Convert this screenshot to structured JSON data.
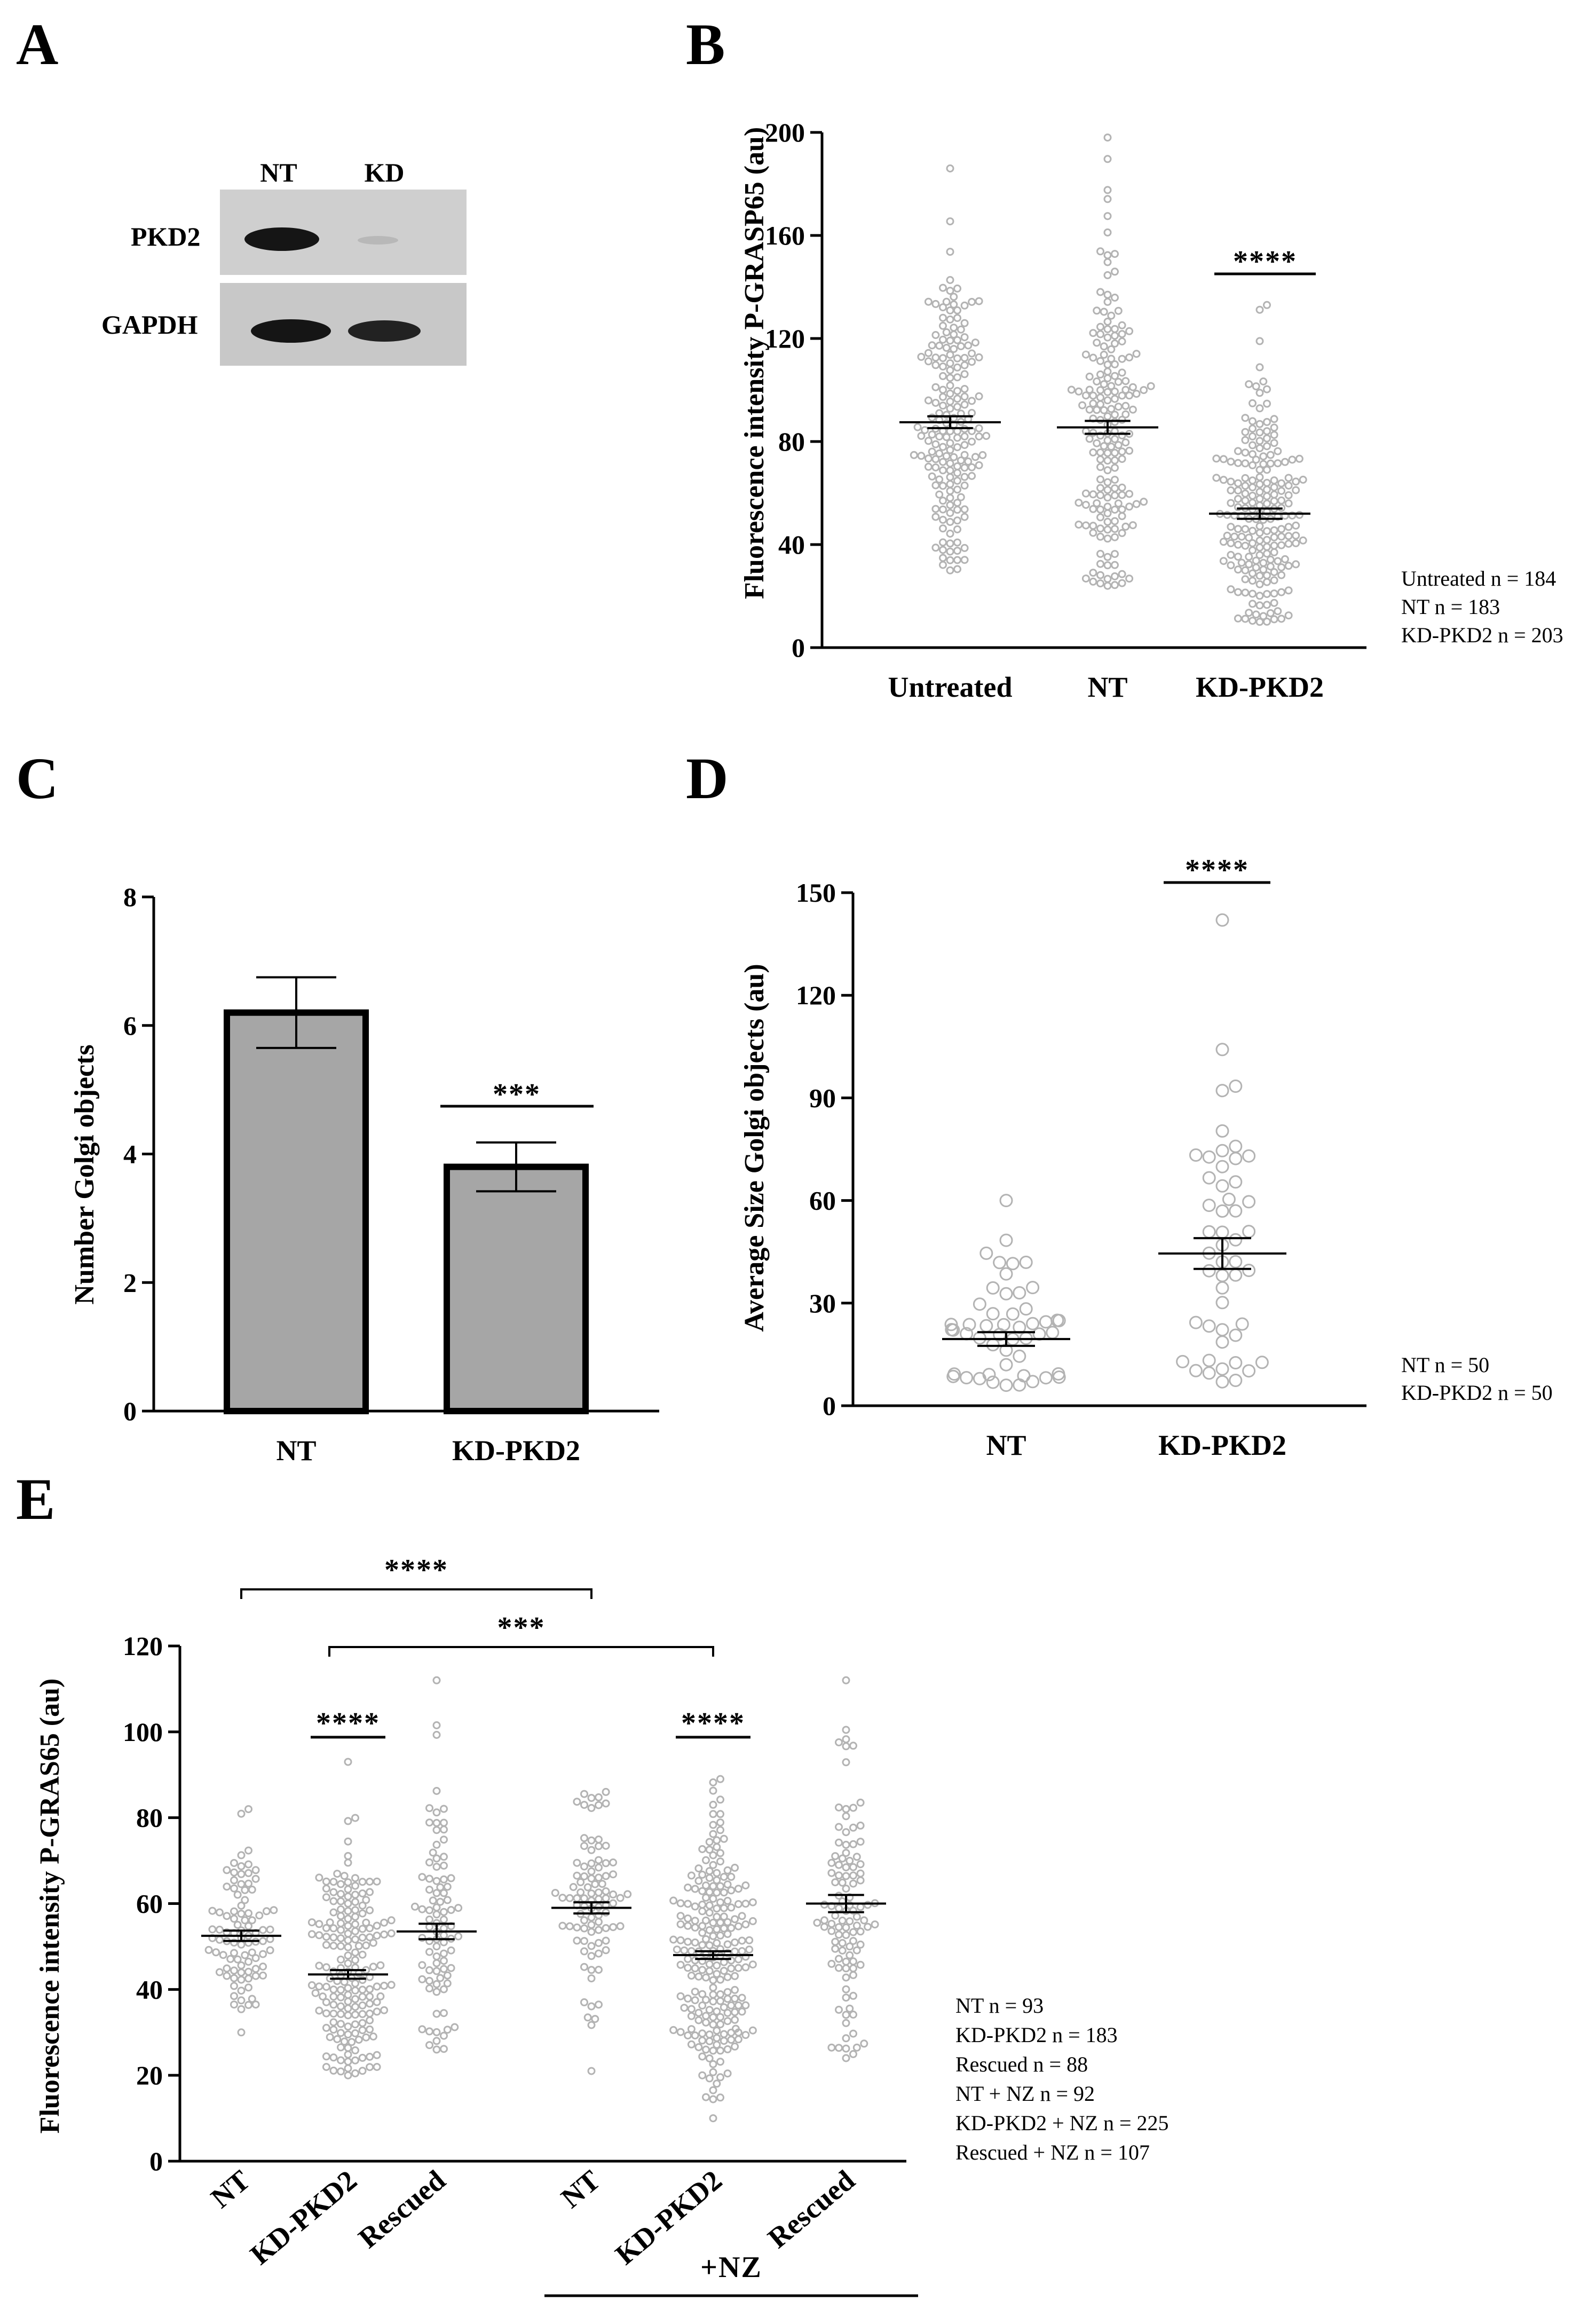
{
  "colors": {
    "dot": "#b3b3b3",
    "bar_fill": "#a6a6a6",
    "axis": "#000000",
    "blot_bg": "#c9c9c9",
    "band": "#1a1a1a"
  },
  "chart_data": [
    {
      "panel": "A",
      "type": "western-blot",
      "lanes": [
        "NT",
        "KD"
      ],
      "rows": [
        {
          "label": "PKD2",
          "band_intensity": [
            1.0,
            0.1
          ]
        },
        {
          "label": "GAPDH",
          "band_intensity": [
            1.0,
            0.85
          ]
        }
      ]
    },
    {
      "panel": "B",
      "type": "scatter",
      "ylabel": "Fluorescence intensity P-GRASP65 (au)",
      "ylim": [
        0,
        200
      ],
      "yticks": [
        0,
        40,
        80,
        120,
        160,
        200
      ],
      "categories": [
        "Untreated",
        "NT",
        "KD-PKD2"
      ],
      "groups": [
        {
          "name": "Untreated",
          "mean": 87.5,
          "sem": 2.3,
          "min": 30,
          "max": 186,
          "n": 184
        },
        {
          "name": "NT",
          "mean": 85.5,
          "sem": 2.5,
          "min": 24,
          "max": 198,
          "n": 183
        },
        {
          "name": "KD-PKD2",
          "mean": 52.0,
          "sem": 2.0,
          "min": 10,
          "max": 133,
          "n": 203
        }
      ],
      "significance": [
        {
          "over": "KD-PKD2",
          "label": "****",
          "y": 145
        }
      ],
      "legend": [
        "Untreated n = 184",
        "NT n = 183",
        "KD-PKD2 n = 203"
      ]
    },
    {
      "panel": "C",
      "type": "bar",
      "ylabel": "Number Golgi objects",
      "ylim": [
        0,
        8
      ],
      "yticks": [
        0,
        2,
        4,
        6,
        8
      ],
      "categories": [
        "NT",
        "KD-PKD2"
      ],
      "values": [
        6.2,
        3.8
      ],
      "errors": [
        0.55,
        0.38
      ],
      "significance": [
        {
          "over": "KD-PKD2",
          "label": "***",
          "y": 4.75
        }
      ]
    },
    {
      "panel": "D",
      "type": "scatter",
      "ylabel": "Average Size Golgi objects (au)",
      "ylim": [
        0,
        150
      ],
      "yticks": [
        0,
        30,
        60,
        90,
        120,
        150
      ],
      "categories": [
        "NT",
        "KD-PKD2"
      ],
      "groups": [
        {
          "name": "NT",
          "mean": 19.5,
          "sem": 2.0,
          "min": 6,
          "max": 60,
          "n": 50
        },
        {
          "name": "KD-PKD2",
          "mean": 44.5,
          "sem": 4.5,
          "min": 7,
          "max": 142,
          "n": 50
        }
      ],
      "significance": [
        {
          "over": "KD-PKD2",
          "label": "****",
          "y": 152
        }
      ],
      "legend": [
        "NT n = 50",
        "KD-PKD2 n = 50"
      ]
    },
    {
      "panel": "E",
      "type": "scatter",
      "ylabel": "Fluorescence intensity P-GRAS65 (au)",
      "ylim": [
        0,
        120
      ],
      "yticks": [
        0,
        20,
        40,
        60,
        80,
        100,
        120
      ],
      "categories": [
        "NT",
        "KD-PKD2",
        "Rescued",
        "NT",
        "KD-PKD2",
        "Rescued"
      ],
      "groups": [
        {
          "name": "NT",
          "mean": 52.5,
          "sem": 1.2,
          "min": 30,
          "max": 82,
          "n": 93
        },
        {
          "name": "KD-PKD2",
          "mean": 43.5,
          "sem": 1.0,
          "min": 20,
          "max": 93,
          "n": 183
        },
        {
          "name": "Rescued",
          "mean": 53.5,
          "sem": 1.8,
          "min": 26,
          "max": 112,
          "n": 88
        },
        {
          "name": "NT + NZ",
          "mean": 59.0,
          "sem": 1.3,
          "min": 21,
          "max": 86,
          "n": 92
        },
        {
          "name": "KD-PKD2 + NZ",
          "mean": 48.0,
          "sem": 0.9,
          "min": 10,
          "max": 89,
          "n": 225
        },
        {
          "name": "Rescued + NZ",
          "mean": 60.0,
          "sem": 2.0,
          "min": 24,
          "max": 112,
          "n": 107
        }
      ],
      "significance": [
        {
          "over": "KD-PKD2",
          "label": "****",
          "y": 100
        },
        {
          "over": "KD-PKD2 + NZ",
          "label": "****",
          "y": 100
        }
      ],
      "brackets": [
        {
          "from": 0,
          "to": 3,
          "label": "****"
        },
        {
          "from": 1,
          "to": 4,
          "label": "***"
        }
      ],
      "group_label": "+NZ",
      "legend": [
        "NT n = 93",
        "KD-PKD2 n = 183",
        "Rescued n = 88",
        "NT + NZ n = 92",
        "KD-PKD2 + NZ n = 225",
        "Rescued + NZ n = 107"
      ]
    }
  ]
}
